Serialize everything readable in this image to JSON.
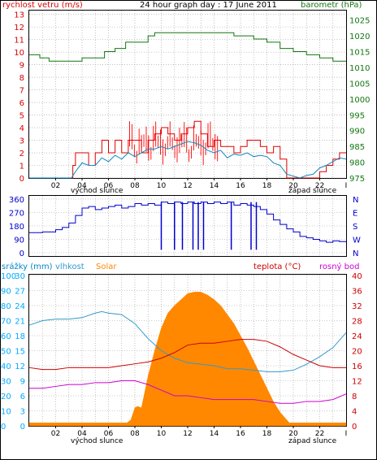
{
  "colors": {
    "wind": "#dd0000",
    "gust": "#ff0000",
    "wind_avg": "#1188bb",
    "pressure": "#117711",
    "direction": "#0000cc",
    "humidity": "#3399cc",
    "temperature": "#cc0000",
    "dewpoint": "#cc00cc",
    "solar": "#ff8800",
    "rain": "#00aaff"
  },
  "chart_data": [
    {
      "id": "wind_pressure",
      "type": "line",
      "title": "24 hour graph day : 17 June 2011",
      "left_label": "rychlost vetru (m/s)",
      "right_label": "barometr (hPa)",
      "left_ticks": [
        0,
        1,
        2,
        3,
        4,
        5,
        6,
        7,
        8,
        9,
        10,
        11,
        12,
        13
      ],
      "right_ticks": [
        975,
        980,
        985,
        990,
        995,
        1000,
        1005,
        1010,
        1015,
        1020,
        1025
      ],
      "ylim_left": [
        0,
        13.3
      ],
      "ylim_right": [
        975,
        1028
      ],
      "x_ticks": [
        "02",
        "04",
        "06",
        "08",
        "10",
        "12",
        "14",
        "16",
        "18",
        "20",
        "22"
      ],
      "x_end_tick": "I",
      "sunrise_label": "východ slunce",
      "sunset_label": "západ slunce",
      "series": [
        {
          "key": "gust",
          "x": [
            0,
            3,
            3.3,
            3.5,
            4,
            4.5,
            5,
            5.5,
            6,
            6.5,
            7,
            7.5,
            8,
            8.5,
            9,
            9.5,
            10,
            10.5,
            11,
            11.5,
            12,
            12.5,
            13,
            13.5,
            14,
            14.5,
            15,
            15.5,
            16,
            16.5,
            17,
            17.5,
            18,
            18.5,
            19,
            19.5,
            21,
            21.5,
            22,
            22.5,
            23,
            23.5,
            24
          ],
          "y": [
            0,
            0,
            1,
            2,
            2,
            1,
            2,
            3,
            2,
            3,
            2,
            3,
            3,
            2,
            3,
            3.5,
            4,
            3.5,
            3,
            3.5,
            4,
            4.5,
            3.5,
            2.5,
            3,
            2.5,
            2.5,
            2,
            2.5,
            3,
            3,
            2.5,
            2,
            2.5,
            1.5,
            0,
            0,
            0,
            0.5,
            1,
            1.5,
            2,
            2
          ]
        },
        {
          "key": "wind_avg",
          "x": [
            0,
            3.2,
            3.5,
            4,
            4.5,
            5,
            5.5,
            6,
            6.5,
            7,
            7.5,
            8,
            8.5,
            9,
            9.5,
            10,
            10.5,
            11,
            11.5,
            12,
            12.5,
            13,
            13.5,
            14,
            14.5,
            15,
            15.5,
            16,
            16.5,
            17,
            17.5,
            18,
            18.5,
            19,
            19.5,
            20.5,
            21,
            21.5,
            22,
            22.5,
            23,
            23.5,
            24
          ],
          "y": [
            0,
            0,
            0.5,
            1.2,
            1,
            1,
            1.6,
            1.3,
            1.8,
            1.5,
            2,
            1.7,
            2,
            2.3,
            2.3,
            2.5,
            2.3,
            2.5,
            2.7,
            2.9,
            2.8,
            2.6,
            2.2,
            2,
            2.2,
            1.6,
            1.9,
            1.8,
            2,
            1.7,
            1.8,
            1.7,
            1.2,
            1,
            0.3,
            0,
            0.2,
            0.3,
            0.8,
            1,
            1.3,
            1.6,
            1.5
          ]
        },
        {
          "key": "pressure",
          "x": [
            0,
            0.8,
            1.5,
            3.5,
            4,
            5,
            5.7,
            6.5,
            7.3,
            9,
            9.5,
            10,
            15,
            15.5,
            17,
            18,
            19,
            20,
            21,
            22,
            23,
            24
          ],
          "y": [
            1014,
            1013,
            1012,
            1012,
            1013,
            1013,
            1015,
            1016,
            1018,
            1020,
            1021,
            1021,
            1021,
            1020,
            1019,
            1018,
            1016,
            1015,
            1014,
            1013,
            1012,
            1012
          ]
        }
      ],
      "wind_max_step": 5
    },
    {
      "id": "direction",
      "type": "line",
      "left_ticks": [
        0,
        90,
        180,
        270,
        360
      ],
      "right_ticks": [
        "N",
        "W",
        "S",
        "E",
        "N"
      ],
      "ylim": [
        0,
        360
      ],
      "series": [
        {
          "key": "direction",
          "x": [
            0,
            1,
            2,
            2.5,
            3,
            3.5,
            4,
            4.5,
            5,
            5.5,
            6,
            6.5,
            7,
            7.5,
            8,
            8.5,
            9,
            9.5,
            10,
            10.5,
            11,
            11.5,
            12,
            12.5,
            13,
            13.5,
            14,
            14.5,
            15,
            15.5,
            16,
            16.5,
            17,
            17.5,
            18,
            18.5,
            19,
            19.5,
            20,
            20.5,
            21,
            21.5,
            22,
            22.5,
            23,
            23.5,
            24
          ],
          "y": [
            135,
            140,
            155,
            170,
            200,
            250,
            300,
            310,
            290,
            300,
            310,
            320,
            300,
            310,
            330,
            320,
            330,
            320,
            340,
            330,
            340,
            330,
            340,
            330,
            340,
            330,
            340,
            330,
            340,
            320,
            330,
            320,
            310,
            290,
            260,
            220,
            190,
            160,
            140,
            110,
            100,
            90,
            80,
            70,
            80,
            75,
            70
          ]
        }
      ],
      "drops": [
        10,
        11,
        11.6,
        12.4,
        12.8,
        13.2,
        15.3,
        16.8,
        17.2
      ]
    },
    {
      "id": "weather",
      "type": "area",
      "labels": {
        "rain": "srážky (mm)",
        "humidity": "vlhkost",
        "solar": "Solar",
        "temperature": "teplota (°C)",
        "dewpoint": "rosný bod"
      },
      "humidity_ticks": [
        0,
        10,
        20,
        30,
        40,
        50,
        60,
        70,
        80,
        90,
        100
      ],
      "rain_ticks": [
        0,
        3,
        6,
        9,
        12,
        15,
        18,
        21,
        24,
        27,
        30
      ],
      "temp_ticks_left": [
        0,
        4,
        8,
        12,
        16,
        20,
        24,
        28,
        32,
        36,
        40
      ],
      "temp_ticks_right": [
        0,
        4,
        8,
        12,
        16,
        20,
        24,
        28,
        32,
        36,
        40
      ],
      "series": [
        {
          "key": "humidity",
          "x": [
            0,
            1,
            2,
            3,
            4,
            5,
            5.5,
            6,
            7,
            8,
            9,
            10,
            11,
            12,
            13,
            14,
            15,
            16,
            17,
            18,
            19,
            20,
            21,
            22,
            23,
            24
          ],
          "y": [
            67,
            70,
            71,
            71,
            72,
            75,
            76,
            75,
            74,
            68,
            58,
            50,
            45,
            42,
            41,
            40,
            38,
            38,
            37,
            36,
            36,
            37,
            41,
            46,
            52,
            62
          ]
        },
        {
          "key": "temperature",
          "x": [
            0,
            1,
            2,
            3,
            4,
            5,
            6,
            7,
            8,
            9,
            10,
            11,
            12,
            13,
            14,
            15,
            16,
            17,
            18,
            19,
            20,
            21,
            22,
            23,
            24
          ],
          "y": [
            15.5,
            15,
            15,
            15.5,
            15.5,
            15.5,
            15.5,
            16,
            16.5,
            17,
            18,
            19.5,
            21.5,
            22,
            22,
            22.5,
            23,
            23,
            22.5,
            21,
            19,
            17.5,
            16,
            15.5,
            15.5
          ]
        },
        {
          "key": "dewpoint",
          "x": [
            0,
            1,
            2,
            3,
            4,
            5,
            6,
            7,
            8,
            9,
            10,
            11,
            12,
            13,
            14,
            15,
            16,
            17,
            18,
            19,
            20,
            21,
            22,
            23,
            24
          ],
          "y": [
            10,
            10,
            10.5,
            11,
            11,
            11.5,
            11.5,
            12,
            12,
            11,
            9.5,
            8,
            8,
            7.5,
            7,
            7,
            7,
            7,
            6.5,
            6,
            6,
            6.5,
            6.5,
            7,
            8.5
          ]
        },
        {
          "key": "solar",
          "x": [
            0,
            7,
            7.4,
            7.7,
            8,
            8.2,
            8.5,
            9,
            9.5,
            10,
            10.5,
            11,
            11.5,
            12,
            12.5,
            13,
            13.5,
            14,
            14.5,
            15,
            15.5,
            16,
            16.5,
            17,
            17.5,
            18,
            18.5,
            19,
            19.5,
            19.7,
            20,
            24
          ],
          "y": [
            0,
            0,
            2,
            4,
            12,
            13,
            12,
            33,
            50,
            65,
            75,
            80,
            84,
            88,
            89,
            89,
            87,
            84,
            80,
            74,
            68,
            60,
            52,
            43,
            34,
            25,
            16,
            9,
            4,
            1,
            0,
            0
          ]
        }
      ],
      "solar_floor": 2
    }
  ]
}
